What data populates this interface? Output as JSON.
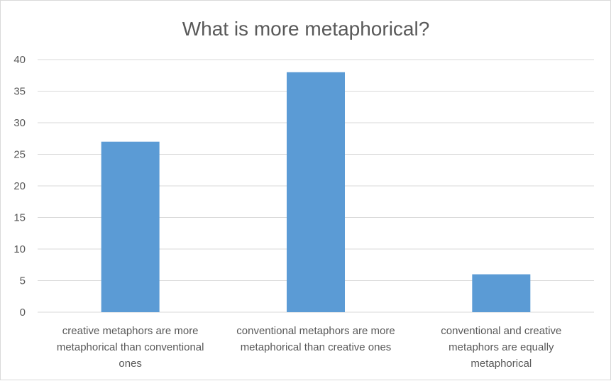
{
  "chart_data": {
    "type": "bar",
    "title": "What is more metaphorical?",
    "categories": [
      [
        "creative metaphors are more",
        "metaphorical than conventional",
        "ones"
      ],
      [
        "conventional metaphors are more",
        "metaphorical than creative ones"
      ],
      [
        "conventional and creative",
        "metaphors are equally",
        "metaphorical"
      ]
    ],
    "values": [
      27,
      38,
      6
    ],
    "yticks": [
      "0",
      "5",
      "10",
      "15",
      "20",
      "25",
      "30",
      "35",
      "40"
    ],
    "ylim": [
      0,
      40
    ],
    "ystep": 5,
    "xlabel": "",
    "ylabel": "",
    "grid": true,
    "bar_color": "#5b9bd5",
    "grid_color": "#d9d9d9",
    "text_color": "#595959"
  }
}
